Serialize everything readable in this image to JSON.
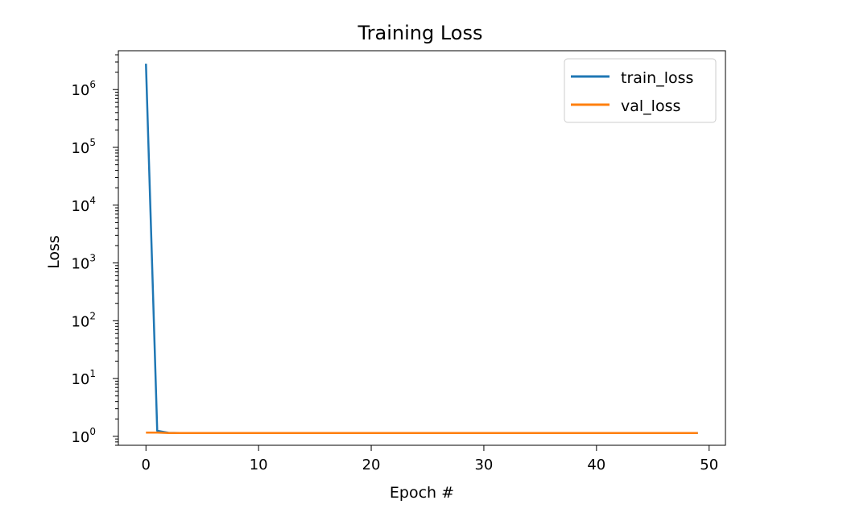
{
  "chart_data": {
    "type": "line",
    "title": "Training Loss",
    "xlabel": "Epoch #",
    "ylabel": "Loss",
    "yscale": "log",
    "xlim": [
      -2.45,
      51.45
    ],
    "ylim": [
      0.7,
      4700000
    ],
    "x_ticks": [
      "0",
      "10",
      "20",
      "30",
      "40",
      "50"
    ],
    "y_ticks": [
      {
        "base": "10",
        "exp": "0"
      },
      {
        "base": "10",
        "exp": "1"
      },
      {
        "base": "10",
        "exp": "2"
      },
      {
        "base": "10",
        "exp": "3"
      },
      {
        "base": "10",
        "exp": "4"
      },
      {
        "base": "10",
        "exp": "5"
      },
      {
        "base": "10",
        "exp": "6"
      }
    ],
    "grid": false,
    "legend_position": "top-right",
    "series": [
      {
        "name": "train_loss",
        "color": "#1f77b4",
        "x": [
          0,
          1,
          2,
          3,
          4,
          5,
          6,
          7,
          8,
          9,
          10,
          11,
          12,
          13,
          14,
          15,
          16,
          17,
          18,
          19,
          20,
          21,
          22,
          23,
          24,
          25,
          26,
          27,
          28,
          29,
          30,
          31,
          32,
          33,
          34,
          35,
          36,
          37,
          38,
          39,
          40,
          41,
          42,
          43,
          44,
          45,
          46,
          47,
          48,
          49
        ],
        "y": [
          2800000,
          1.25,
          1.15,
          1.14,
          1.14,
          1.14,
          1.14,
          1.14,
          1.14,
          1.14,
          1.14,
          1.14,
          1.14,
          1.14,
          1.14,
          1.14,
          1.14,
          1.14,
          1.14,
          1.14,
          1.14,
          1.14,
          1.14,
          1.14,
          1.14,
          1.14,
          1.14,
          1.14,
          1.14,
          1.14,
          1.14,
          1.14,
          1.14,
          1.14,
          1.14,
          1.14,
          1.14,
          1.14,
          1.14,
          1.14,
          1.14,
          1.14,
          1.14,
          1.14,
          1.14,
          1.14,
          1.14,
          1.14,
          1.14,
          1.14
        ]
      },
      {
        "name": "val_loss",
        "color": "#ff7f0e",
        "x": [
          0,
          1,
          2,
          3,
          4,
          5,
          6,
          7,
          8,
          9,
          10,
          11,
          12,
          13,
          14,
          15,
          16,
          17,
          18,
          19,
          20,
          21,
          22,
          23,
          24,
          25,
          26,
          27,
          28,
          29,
          30,
          31,
          32,
          33,
          34,
          35,
          36,
          37,
          38,
          39,
          40,
          41,
          42,
          43,
          44,
          45,
          46,
          47,
          48,
          49
        ],
        "y": [
          1.16,
          1.16,
          1.14,
          1.14,
          1.14,
          1.14,
          1.14,
          1.14,
          1.14,
          1.14,
          1.14,
          1.14,
          1.14,
          1.14,
          1.14,
          1.14,
          1.14,
          1.14,
          1.14,
          1.14,
          1.14,
          1.14,
          1.14,
          1.14,
          1.14,
          1.14,
          1.14,
          1.14,
          1.14,
          1.14,
          1.14,
          1.14,
          1.14,
          1.14,
          1.14,
          1.14,
          1.14,
          1.14,
          1.14,
          1.14,
          1.14,
          1.14,
          1.14,
          1.14,
          1.14,
          1.14,
          1.14,
          1.14,
          1.14,
          1.14
        ]
      }
    ]
  }
}
